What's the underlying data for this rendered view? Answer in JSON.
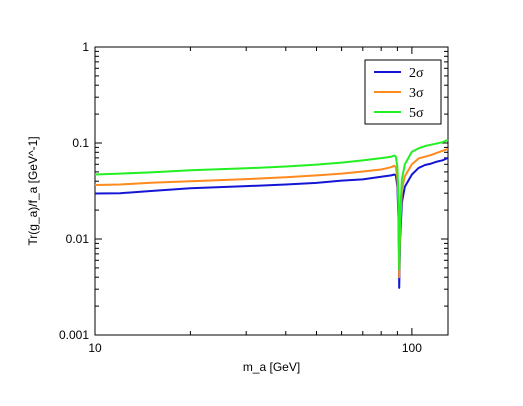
{
  "chart_data": {
    "type": "line",
    "title": "",
    "xlabel": "m_a [GeV]",
    "ylabel": "Tr(g_a)/f_a [GeV^-1]",
    "x_scale": "log",
    "y_scale": "log",
    "xlim": [
      10,
      130
    ],
    "ylim": [
      0.001,
      1
    ],
    "grid": false,
    "legend_position": "top-right",
    "x_ticks": [
      {
        "value": 10,
        "label": "10"
      },
      {
        "value": 100,
        "label": "100"
      }
    ],
    "y_ticks": [
      {
        "value": 1,
        "label": "1"
      },
      {
        "value": 0.1,
        "label": "0.1"
      },
      {
        "value": 0.01,
        "label": "0.01"
      },
      {
        "value": 0.001,
        "label": "0.001"
      }
    ],
    "series": [
      {
        "name": "2σ",
        "color": "#1515d6",
        "points": [
          [
            10,
            0.0298
          ],
          [
            12,
            0.03
          ],
          [
            15,
            0.0316
          ],
          [
            20,
            0.0338
          ],
          [
            30,
            0.0355
          ],
          [
            40,
            0.037
          ],
          [
            50,
            0.0384
          ],
          [
            60,
            0.0405
          ],
          [
            70,
            0.0418
          ],
          [
            80,
            0.0445
          ],
          [
            86,
            0.046
          ],
          [
            88,
            0.047
          ],
          [
            89,
            0.046
          ],
          [
            90,
            0.035
          ],
          [
            90.8,
            0.015
          ],
          [
            91.2,
            0.0031
          ],
          [
            91.8,
            0.01
          ],
          [
            93,
            0.024
          ],
          [
            95,
            0.035
          ],
          [
            100,
            0.047
          ],
          [
            105,
            0.055
          ],
          [
            110,
            0.059
          ],
          [
            115,
            0.061
          ],
          [
            120,
            0.064
          ],
          [
            125,
            0.066
          ],
          [
            130,
            0.07
          ]
        ]
      },
      {
        "name": "3σ",
        "color": "#ff8a1e",
        "points": [
          [
            10,
            0.0365
          ],
          [
            12,
            0.037
          ],
          [
            15,
            0.0385
          ],
          [
            20,
            0.04
          ],
          [
            30,
            0.042
          ],
          [
            40,
            0.044
          ],
          [
            50,
            0.046
          ],
          [
            60,
            0.048
          ],
          [
            70,
            0.0505
          ],
          [
            80,
            0.053
          ],
          [
            86,
            0.056
          ],
          [
            88,
            0.058
          ],
          [
            89,
            0.056
          ],
          [
            90,
            0.043
          ],
          [
            90.8,
            0.02
          ],
          [
            91.2,
            0.004
          ],
          [
            91.8,
            0.013
          ],
          [
            93,
            0.033
          ],
          [
            95,
            0.045
          ],
          [
            100,
            0.06
          ],
          [
            105,
            0.069
          ],
          [
            110,
            0.072
          ],
          [
            115,
            0.075
          ],
          [
            120,
            0.079
          ],
          [
            125,
            0.083
          ],
          [
            130,
            0.087
          ]
        ]
      },
      {
        "name": "5σ",
        "color": "#22f022",
        "points": [
          [
            10,
            0.047
          ],
          [
            12,
            0.048
          ],
          [
            15,
            0.0495
          ],
          [
            20,
            0.052
          ],
          [
            30,
            0.0545
          ],
          [
            40,
            0.057
          ],
          [
            50,
            0.0595
          ],
          [
            60,
            0.0625
          ],
          [
            70,
            0.066
          ],
          [
            80,
            0.0695
          ],
          [
            86,
            0.072
          ],
          [
            88,
            0.074
          ],
          [
            89,
            0.072
          ],
          [
            90,
            0.056
          ],
          [
            90.8,
            0.025
          ],
          [
            91.2,
            0.0048
          ],
          [
            91.8,
            0.017
          ],
          [
            93,
            0.042
          ],
          [
            95,
            0.06
          ],
          [
            100,
            0.081
          ],
          [
            105,
            0.088
          ],
          [
            110,
            0.093
          ],
          [
            115,
            0.096
          ],
          [
            120,
            0.099
          ],
          [
            125,
            0.102
          ],
          [
            130,
            0.108
          ]
        ]
      }
    ]
  }
}
